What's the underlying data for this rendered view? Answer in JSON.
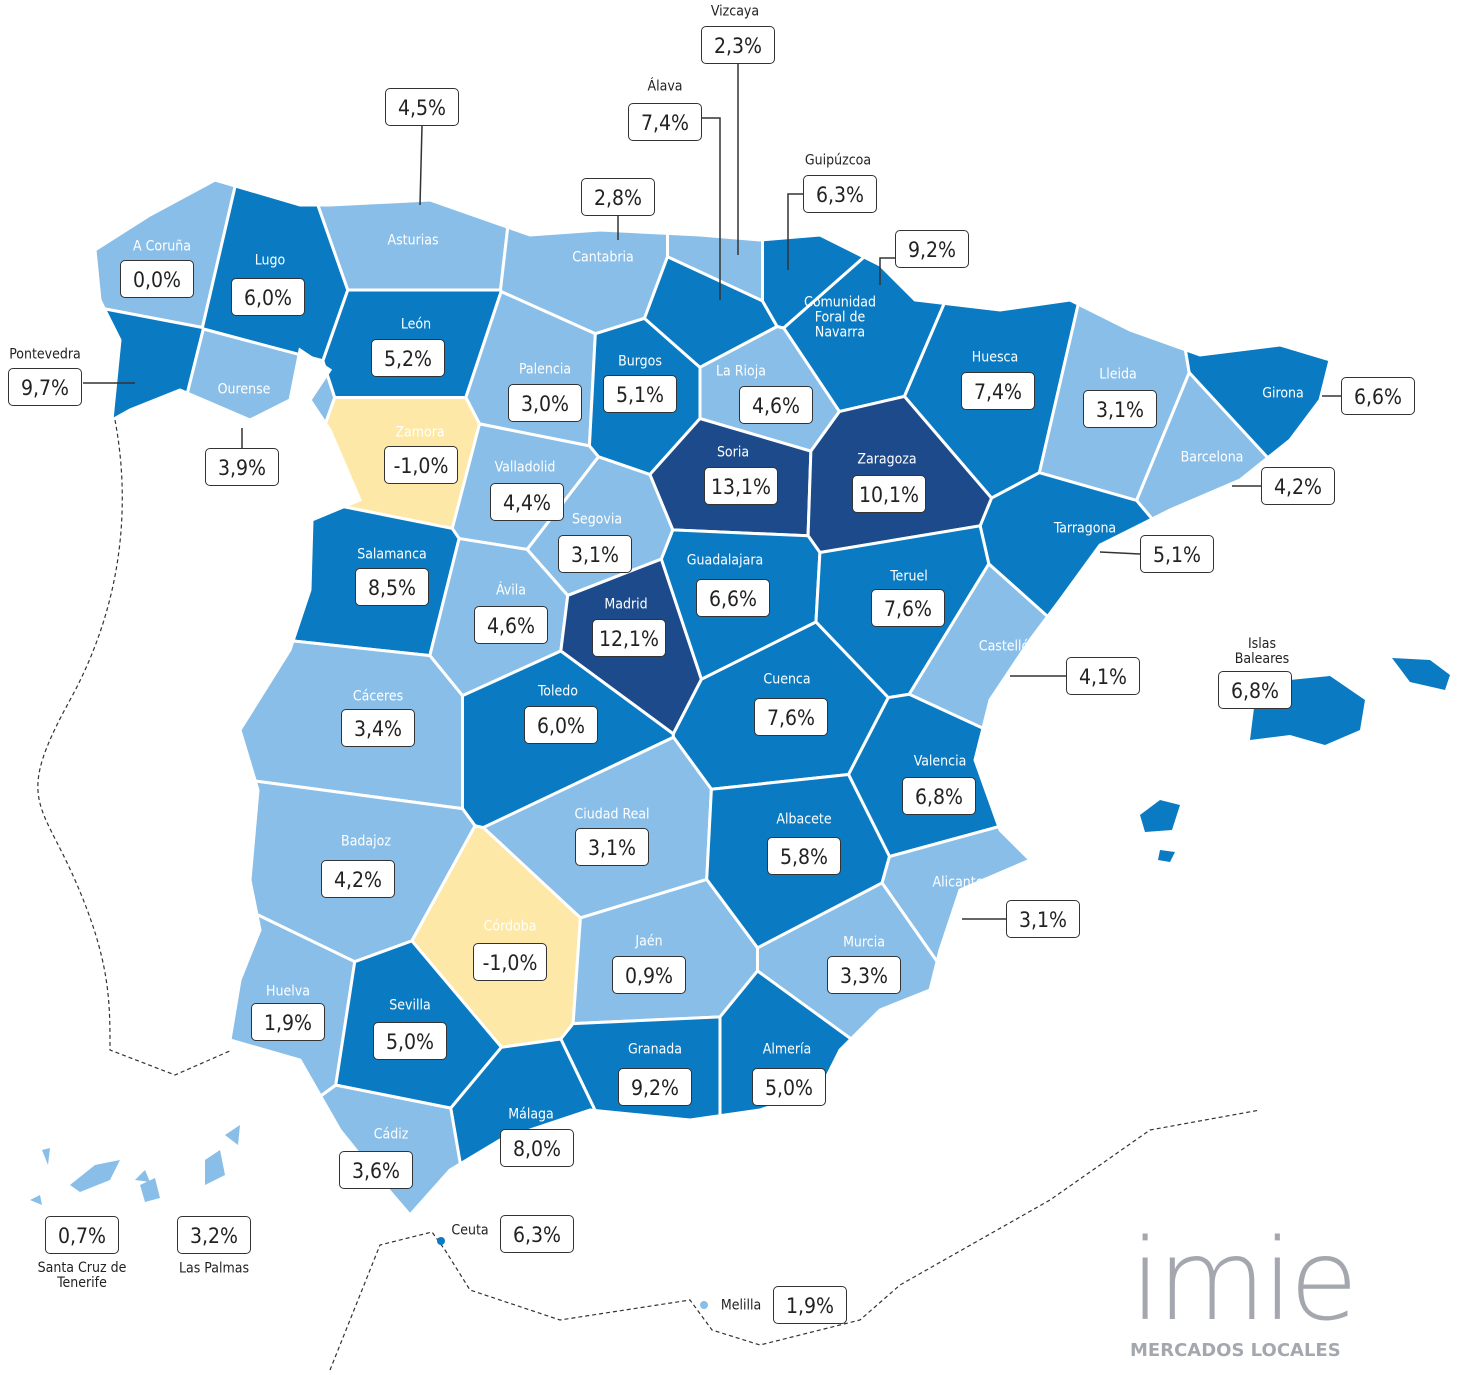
{
  "provinces": [
    {
      "name": "A Coruña",
      "value": 0.0,
      "value_label": "0,0%",
      "color": "#88bee8"
    },
    {
      "name": "Lugo",
      "value": 6.0,
      "value_label": "6,0%",
      "color": "#0a7bc2"
    },
    {
      "name": "Pontevedra",
      "value": 9.7,
      "value_label": "9,7%",
      "color": "#0a7bc2"
    },
    {
      "name": "Ourense",
      "value": 3.9,
      "value_label": "3,9%",
      "color": "#88bee8"
    },
    {
      "name": "Asturias",
      "value": 4.5,
      "value_label": "4,5%",
      "color": "#88bee8"
    },
    {
      "name": "Cantabria",
      "value": 2.8,
      "value_label": "2,8%",
      "color": "#88bee8"
    },
    {
      "name": "León",
      "value": 5.2,
      "value_label": "5,2%",
      "color": "#0a7bc2"
    },
    {
      "name": "Palencia",
      "value": 3.0,
      "value_label": "3,0%",
      "color": "#88bee8"
    },
    {
      "name": "Burgos",
      "value": 5.1,
      "value_label": "5,1%",
      "color": "#0a7bc2"
    },
    {
      "name": "Vizcaya",
      "value": 2.3,
      "value_label": "2,3%",
      "color": "#88bee8"
    },
    {
      "name": "Álava",
      "value": 7.4,
      "value_label": "7,4%",
      "color": "#0a7bc2"
    },
    {
      "name": "Guipúzcoa",
      "value": 6.3,
      "value_label": "6,3%",
      "color": "#0a7bc2"
    },
    {
      "name": "Comunidad Foral de Navarra",
      "value": 9.2,
      "value_label": "9,2%",
      "color": "#0a7bc2"
    },
    {
      "name": "La Rioja",
      "value": 4.6,
      "value_label": "4,6%",
      "color": "#88bee8"
    },
    {
      "name": "Huesca",
      "value": 7.4,
      "value_label": "7,4%",
      "color": "#0a7bc2"
    },
    {
      "name": "Lleida",
      "value": 3.1,
      "value_label": "3,1%",
      "color": "#88bee8"
    },
    {
      "name": "Girona",
      "value": 6.6,
      "value_label": "6,6%",
      "color": "#0a7bc2"
    },
    {
      "name": "Barcelona",
      "value": 4.2,
      "value_label": "4,2%",
      "color": "#88bee8"
    },
    {
      "name": "Tarragona",
      "value": 5.1,
      "value_label": "5,1%",
      "color": "#0a7bc2"
    },
    {
      "name": "Zamora",
      "value": -1.0,
      "value_label": "-1,0%",
      "color": "#fde8a8"
    },
    {
      "name": "Valladolid",
      "value": 4.4,
      "value_label": "4,4%",
      "color": "#88bee8"
    },
    {
      "name": "Soria",
      "value": 13.1,
      "value_label": "13,1%",
      "color": "#1c4a8a"
    },
    {
      "name": "Zaragoza",
      "value": 10.1,
      "value_label": "10,1%",
      "color": "#1c4a8a"
    },
    {
      "name": "Salamanca",
      "value": 8.5,
      "value_label": "8,5%",
      "color": "#0a7bc2"
    },
    {
      "name": "Segovia",
      "value": 3.1,
      "value_label": "3,1%",
      "color": "#88bee8"
    },
    {
      "name": "Ávila",
      "value": 4.6,
      "value_label": "4,6%",
      "color": "#88bee8"
    },
    {
      "name": "Madrid",
      "value": 12.1,
      "value_label": "12,1%",
      "color": "#1c4a8a"
    },
    {
      "name": "Guadalajara",
      "value": 6.6,
      "value_label": "6,6%",
      "color": "#0a7bc2"
    },
    {
      "name": "Teruel",
      "value": 7.6,
      "value_label": "7,6%",
      "color": "#0a7bc2"
    },
    {
      "name": "Castellón",
      "value": 4.1,
      "value_label": "4,1%",
      "color": "#88bee8"
    },
    {
      "name": "Cáceres",
      "value": 3.4,
      "value_label": "3,4%",
      "color": "#88bee8"
    },
    {
      "name": "Toledo",
      "value": 6.0,
      "value_label": "6,0%",
      "color": "#0a7bc2"
    },
    {
      "name": "Cuenca",
      "value": 7.6,
      "value_label": "7,6%",
      "color": "#0a7bc2"
    },
    {
      "name": "Valencia",
      "value": 6.8,
      "value_label": "6,8%",
      "color": "#0a7bc2"
    },
    {
      "name": "Ciudad Real",
      "value": 3.1,
      "value_label": "3,1%",
      "color": "#88bee8"
    },
    {
      "name": "Albacete",
      "value": 5.8,
      "value_label": "5,8%",
      "color": "#0a7bc2"
    },
    {
      "name": "Badajoz",
      "value": 4.2,
      "value_label": "4,2%",
      "color": "#88bee8"
    },
    {
      "name": "Alicante",
      "value": 3.1,
      "value_label": "3,1%",
      "color": "#88bee8"
    },
    {
      "name": "Córdoba",
      "value": -1.0,
      "value_label": "-1,0%",
      "color": "#fde8a8"
    },
    {
      "name": "Jaén",
      "value": 0.9,
      "value_label": "0,9%",
      "color": "#88bee8"
    },
    {
      "name": "Murcia",
      "value": 3.3,
      "value_label": "3,3%",
      "color": "#88bee8"
    },
    {
      "name": "Huelva",
      "value": 1.9,
      "value_label": "1,9%",
      "color": "#88bee8"
    },
    {
      "name": "Sevilla",
      "value": 5.0,
      "value_label": "5,0%",
      "color": "#0a7bc2"
    },
    {
      "name": "Granada",
      "value": 9.2,
      "value_label": "9,2%",
      "color": "#0a7bc2"
    },
    {
      "name": "Almería",
      "value": 5.0,
      "value_label": "5,0%",
      "color": "#0a7bc2"
    },
    {
      "name": "Málaga",
      "value": 8.0,
      "value_label": "8,0%",
      "color": "#0a7bc2"
    },
    {
      "name": "Cádiz",
      "value": 3.6,
      "value_label": "3,6%",
      "color": "#88bee8"
    },
    {
      "name": "Islas Baleares",
      "value": 6.8,
      "value_label": "6,8%",
      "color": "#0a7bc2"
    },
    {
      "name": "Santa Cruz de Tenerife",
      "value": 0.7,
      "value_label": "0,7%",
      "color": "#88bee8"
    },
    {
      "name": "Las Palmas",
      "value": 3.2,
      "value_label": "3,2%",
      "color": "#88bee8"
    },
    {
      "name": "Ceuta",
      "value": 6.3,
      "value_label": "6,3%",
      "color": "#0a7bc2"
    },
    {
      "name": "Melilla",
      "value": 1.9,
      "value_label": "1,9%",
      "color": "#88bee8"
    }
  ],
  "logo": {
    "name": "imie",
    "tagline": "MERCADOS LOCALES"
  }
}
